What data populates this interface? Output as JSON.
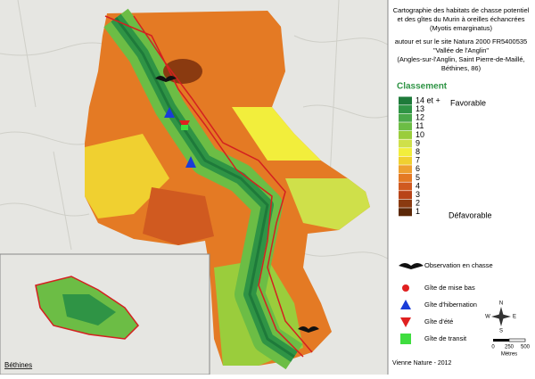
{
  "title_lines": [
    "Cartographie des habitats de chasse potentiel",
    "et des gîtes du Murin à oreilles échancrées",
    "(Myotis emarginatus)",
    "autour et sur le site Natura 2000 FR5400535",
    "\"Vallée de l'Anglin\"",
    "(Angles-sur-l'Anglin, Saint Pierre-de-Maillé,",
    "Béthines, 86)"
  ],
  "legend": {
    "title": "Classement",
    "favorable": "Favorable",
    "defavorable": "Défavorable",
    "classes": [
      {
        "label": "14 et +",
        "color": "#1e7a3a"
      },
      {
        "label": "13",
        "color": "#2f9445"
      },
      {
        "label": "12",
        "color": "#4aa84a"
      },
      {
        "label": "11",
        "color": "#6cbd45"
      },
      {
        "label": "10",
        "color": "#9acd3c"
      },
      {
        "label": "9",
        "color": "#cfe04a"
      },
      {
        "label": "8",
        "color": "#f2ee3c"
      },
      {
        "label": "7",
        "color": "#f0d030"
      },
      {
        "label": "6",
        "color": "#eea030"
      },
      {
        "label": "5",
        "color": "#e47a24"
      },
      {
        "label": "4",
        "color": "#d05a20"
      },
      {
        "label": "3",
        "color": "#b84418"
      },
      {
        "label": "2",
        "color": "#8a3a10"
      },
      {
        "label": "1",
        "color": "#5c2808"
      }
    ]
  },
  "symbols": [
    "Observation en chasse",
    "Gîte de mise bas",
    "Gîte d'hibernation",
    "Gîte d'été",
    "Gîte de transit"
  ],
  "compass": {
    "n": "N",
    "s": "S",
    "e": "E",
    "w": "W"
  },
  "scale": {
    "labels": [
      "0",
      "250",
      "500"
    ],
    "unit": "Mètres"
  },
  "places": [
    "Béthines"
  ],
  "footer": "Vienne Nature - 2012"
}
